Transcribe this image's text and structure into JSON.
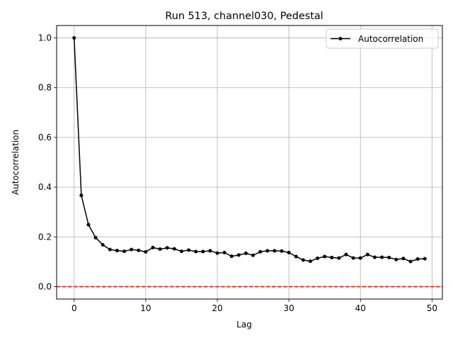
{
  "chart_data": {
    "type": "line",
    "title": "Run 513, channel030, Pedestal",
    "xlabel": "Lag",
    "ylabel": "Autocorrelation",
    "xlim": [
      -2.45,
      51.45
    ],
    "ylim": [
      -0.05,
      1.05
    ],
    "xticks": [
      0,
      10,
      20,
      30,
      40,
      50
    ],
    "xtick_labels": [
      "0",
      "10",
      "20",
      "30",
      "40",
      "50"
    ],
    "yticks": [
      0.0,
      0.2,
      0.4,
      0.6,
      0.8,
      1.0
    ],
    "ytick_labels": [
      "0.0",
      "0.2",
      "0.4",
      "0.6",
      "0.8",
      "1.0"
    ],
    "grid": true,
    "legend_position": "top-right",
    "series": [
      {
        "name": "Autocorrelation",
        "color": "#000000",
        "marker": "circle",
        "x": [
          0,
          1,
          2,
          3,
          4,
          5,
          6,
          7,
          8,
          9,
          10,
          11,
          12,
          13,
          14,
          15,
          16,
          17,
          18,
          19,
          20,
          21,
          22,
          23,
          24,
          25,
          26,
          27,
          28,
          29,
          30,
          31,
          32,
          33,
          34,
          35,
          36,
          37,
          38,
          39,
          40,
          41,
          42,
          43,
          44,
          45,
          46,
          47,
          48,
          49
        ],
        "values": [
          1.0,
          0.367,
          0.249,
          0.197,
          0.168,
          0.149,
          0.145,
          0.142,
          0.149,
          0.146,
          0.14,
          0.157,
          0.151,
          0.156,
          0.152,
          0.142,
          0.147,
          0.141,
          0.141,
          0.144,
          0.135,
          0.137,
          0.122,
          0.127,
          0.134,
          0.126,
          0.14,
          0.144,
          0.144,
          0.143,
          0.137,
          0.121,
          0.107,
          0.102,
          0.114,
          0.121,
          0.117,
          0.115,
          0.129,
          0.115,
          0.115,
          0.129,
          0.118,
          0.118,
          0.117,
          0.109,
          0.113,
          0.101,
          0.111,
          0.112
        ]
      }
    ],
    "reference_line": {
      "y": 0.0,
      "color": "#ff0000",
      "style": "dashed"
    }
  }
}
